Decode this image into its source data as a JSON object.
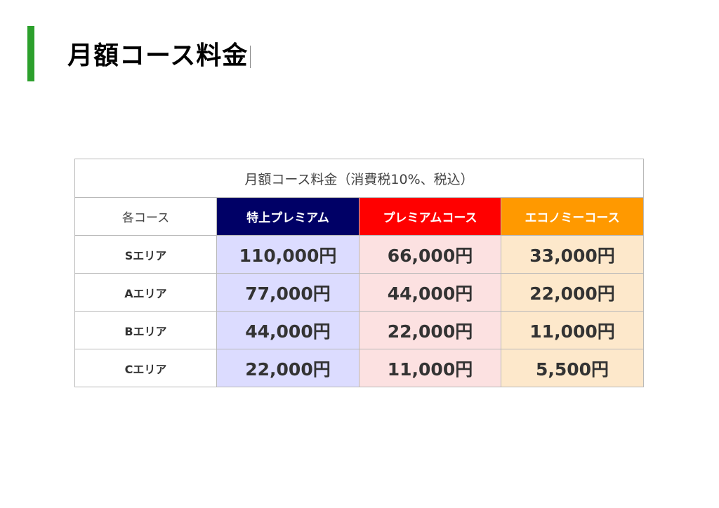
{
  "page": {
    "title": "月額コース料金",
    "accent_color": "#2ca02c"
  },
  "table": {
    "caption": "月額コース料金（消費税10%、税込）",
    "corner_label": "各コース",
    "courses": [
      {
        "name": "特上プレミアム",
        "header_color": "#000066",
        "cell_color": "#dcdcff"
      },
      {
        "name": "プレミアムコース",
        "header_color": "#ff0000",
        "cell_color": "#fce1e1"
      },
      {
        "name": "エコノミーコース",
        "header_color": "#ff9900",
        "cell_color": "#fde8cb"
      }
    ],
    "rows": [
      {
        "label": "Sエリア",
        "prices": [
          "110,000円",
          "66,000円",
          "33,000円"
        ]
      },
      {
        "label": "Aエリア",
        "prices": [
          "77,000円",
          "44,000円",
          "22,000円"
        ]
      },
      {
        "label": "Bエリア",
        "prices": [
          "44,000円",
          "22,000円",
          "11,000円"
        ]
      },
      {
        "label": "Cエリア",
        "prices": [
          "22,000円",
          "11,000円",
          "5,500円"
        ]
      }
    ]
  }
}
